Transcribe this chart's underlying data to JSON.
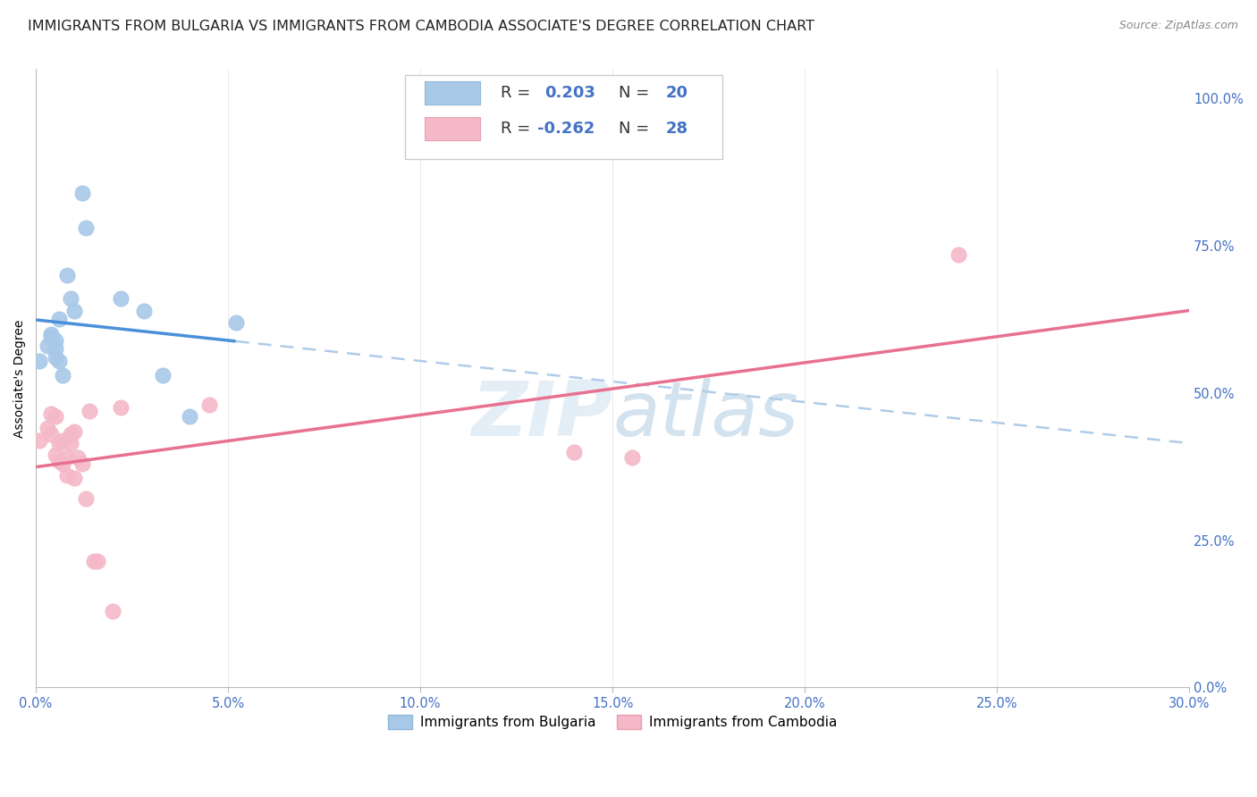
{
  "title": "IMMIGRANTS FROM BULGARIA VS IMMIGRANTS FROM CAMBODIA ASSOCIATE'S DEGREE CORRELATION CHART",
  "source": "Source: ZipAtlas.com",
  "ylabel": "Associate's Degree",
  "ylabel_right_ticks": [
    "0.0%",
    "25.0%",
    "50.0%",
    "75.0%",
    "100.0%"
  ],
  "ylabel_right_values": [
    0.0,
    0.25,
    0.5,
    0.75,
    1.0
  ],
  "R_bulgaria": 0.203,
  "N_bulgaria": 20,
  "R_cambodia": -0.262,
  "N_cambodia": 28,
  "color_bulgaria": "#a8c8e8",
  "color_cambodia": "#f4b8c8",
  "color_trend_bulgaria_solid": "#4a90d9",
  "color_trend_cambodia": "#e87090",
  "color_trend_dashed": "#b0cce8",
  "xlim": [
    0.0,
    0.3
  ],
  "ylim": [
    0.0,
    1.05
  ],
  "bulgaria_x": [
    0.001,
    0.003,
    0.004,
    0.004,
    0.005,
    0.005,
    0.005,
    0.006,
    0.006,
    0.007,
    0.008,
    0.009,
    0.01,
    0.012,
    0.013,
    0.022,
    0.028,
    0.033,
    0.04,
    0.052
  ],
  "bulgaria_y": [
    0.555,
    0.58,
    0.6,
    0.595,
    0.56,
    0.575,
    0.59,
    0.555,
    0.625,
    0.53,
    0.7,
    0.66,
    0.64,
    0.84,
    0.78,
    0.66,
    0.64,
    0.53,
    0.46,
    0.62
  ],
  "cambodia_x": [
    0.001,
    0.003,
    0.004,
    0.004,
    0.005,
    0.005,
    0.006,
    0.006,
    0.007,
    0.007,
    0.008,
    0.008,
    0.009,
    0.009,
    0.01,
    0.01,
    0.011,
    0.012,
    0.013,
    0.014,
    0.015,
    0.016,
    0.02,
    0.022,
    0.045,
    0.14,
    0.155,
    0.24
  ],
  "cambodia_y": [
    0.42,
    0.44,
    0.465,
    0.43,
    0.46,
    0.395,
    0.415,
    0.385,
    0.42,
    0.38,
    0.39,
    0.36,
    0.43,
    0.415,
    0.435,
    0.355,
    0.39,
    0.38,
    0.32,
    0.47,
    0.215,
    0.215,
    0.13,
    0.475,
    0.48,
    0.4,
    0.39,
    0.735
  ],
  "background_color": "#ffffff",
  "grid_color": "#e0e0e8",
  "title_fontsize": 11.5,
  "axis_fontsize": 10,
  "tick_fontsize": 10.5,
  "legend_fontsize": 13
}
